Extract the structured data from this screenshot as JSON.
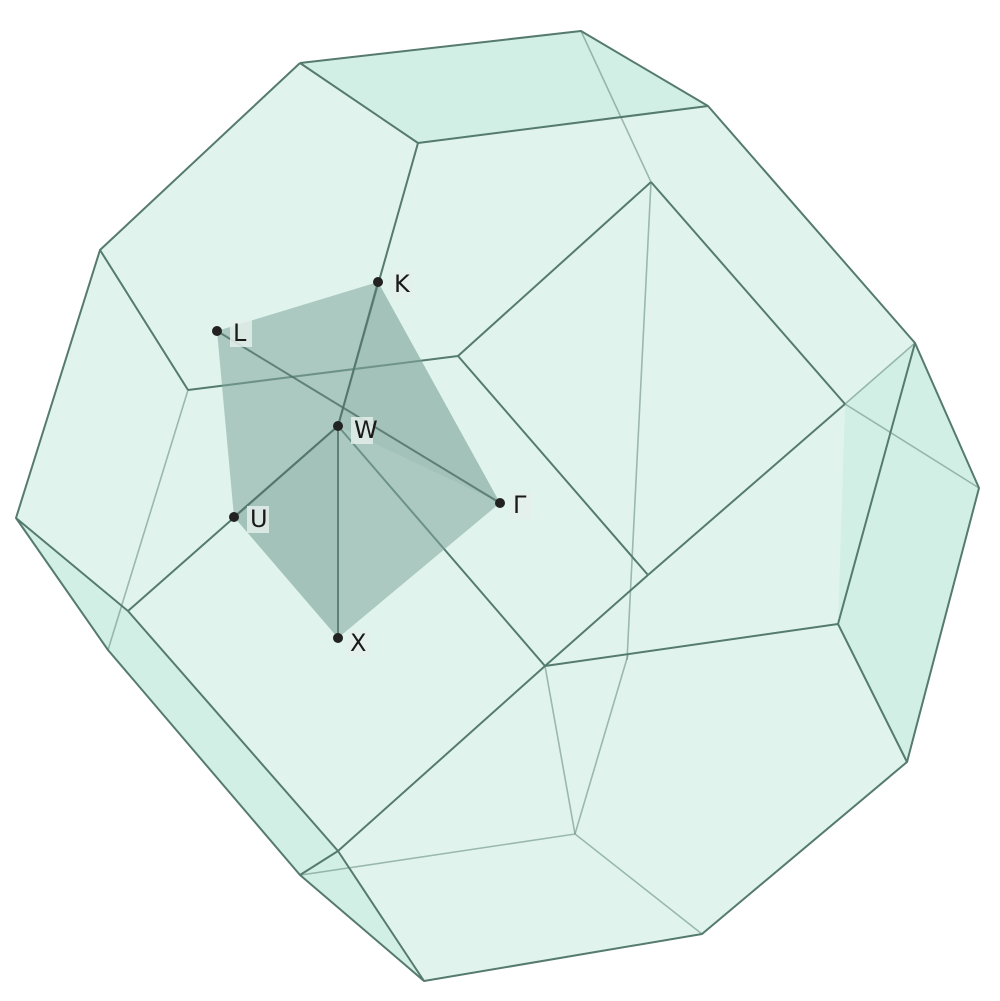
{
  "diagram": {
    "colors": {
      "face_fill": "#c6ebdf",
      "edge": "#557a6e",
      "hidden_edge": "#6b8f83",
      "wedge_fill": "#7fa69b",
      "point": "#222222"
    },
    "points": [
      {
        "id": "K",
        "label": "K"
      },
      {
        "id": "L",
        "label": "L"
      },
      {
        "id": "W",
        "label": "W"
      },
      {
        "id": "U",
        "label": "U"
      },
      {
        "id": "Gamma",
        "label": "Γ"
      },
      {
        "id": "X",
        "label": "X"
      }
    ]
  }
}
